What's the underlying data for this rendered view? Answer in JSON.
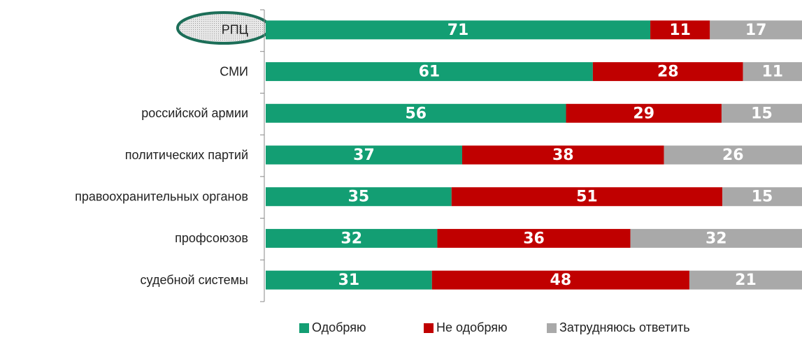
{
  "chart_data": {
    "type": "bar",
    "orientation": "horizontal",
    "stacked": "percent",
    "categories": [
      "РПЦ",
      "СМИ",
      "российской армии",
      "политических партий",
      "правоохранительных органов",
      "профсоюзов",
      "судебной системы"
    ],
    "series": [
      {
        "name": "Одобряю",
        "color": "#139e73",
        "values": [
          71,
          61,
          56,
          37,
          35,
          32,
          31
        ]
      },
      {
        "name": "Не одобряю",
        "color": "#c00000",
        "values": [
          11,
          28,
          29,
          38,
          51,
          36,
          48
        ]
      },
      {
        "name": "Затрудняюсь ответить",
        "color": "#a9a9a9",
        "values": [
          17,
          11,
          15,
          26,
          15,
          32,
          21
        ]
      }
    ],
    "legend": "bottom"
  }
}
